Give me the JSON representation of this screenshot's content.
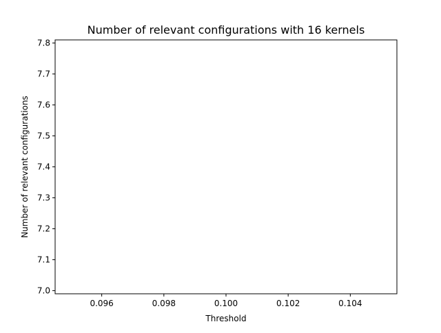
{
  "chart_data": {
    "type": "line",
    "title": "Number of relevant configurations with 16 kernels",
    "xlabel": "Threshold",
    "ylabel": "Number of relevant configurations",
    "xlim": [
      0.0945,
      0.1055
    ],
    "ylim": [
      6.99,
      7.81
    ],
    "xticks": [
      0.096,
      0.098,
      0.1,
      0.102,
      0.104
    ],
    "xtick_labels": [
      "0.096",
      "0.098",
      "0.100",
      "0.102",
      "0.104"
    ],
    "yticks": [
      7.0,
      7.1,
      7.2,
      7.3,
      7.4,
      7.5,
      7.6,
      7.7,
      7.8
    ],
    "ytick_labels": [
      "7.0",
      "7.1",
      "7.2",
      "7.3",
      "7.4",
      "7.5",
      "7.6",
      "7.7",
      "7.8"
    ],
    "grid": false,
    "series": []
  }
}
